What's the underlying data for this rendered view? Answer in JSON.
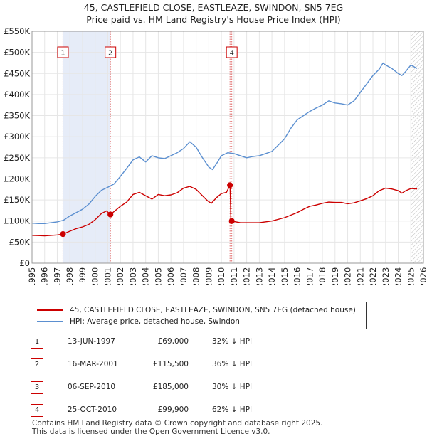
{
  "header": {
    "title": "45, CASTLEFIELD CLOSE, EASTLEAZE, SWINDON, SN5 7EG",
    "subtitle": "Price paid vs. HM Land Registry's House Price Index (HPI)"
  },
  "colors": {
    "price": "#cc0000",
    "hpi": "#5b8fd0",
    "shade": "#e6ecf8",
    "grid": "#e6e6e6"
  },
  "chart_data": {
    "type": "line",
    "title": "Price paid vs. HM Land Registry's House Price Index (HPI)",
    "xlim": [
      1995,
      2026
    ],
    "ylim": [
      0,
      550000
    ],
    "y_ticks": [
      {
        "value": 0,
        "label": "£0"
      },
      {
        "value": 50000,
        "label": "£50K"
      },
      {
        "value": 100000,
        "label": "£100K"
      },
      {
        "value": 150000,
        "label": "£150K"
      },
      {
        "value": 200000,
        "label": "£200K"
      },
      {
        "value": 250000,
        "label": "£250K"
      },
      {
        "value": 300000,
        "label": "£300K"
      },
      {
        "value": 350000,
        "label": "£350K"
      },
      {
        "value": 400000,
        "label": "£400K"
      },
      {
        "value": 450000,
        "label": "£450K"
      },
      {
        "value": 500000,
        "label": "£500K"
      },
      {
        "value": 550000,
        "label": "£550K"
      }
    ],
    "x_ticks": [
      "1995",
      "1996",
      "1997",
      "1998",
      "1999",
      "2000",
      "2001",
      "2002",
      "2003",
      "2004",
      "2005",
      "2006",
      "2007",
      "2008",
      "2009",
      "2010",
      "2011",
      "2012",
      "2013",
      "2014",
      "2015",
      "2016",
      "2017",
      "2018",
      "2019",
      "2020",
      "2021",
      "2022",
      "2023",
      "2024",
      "2025",
      "2026"
    ],
    "shaded_range": [
      1997.45,
      2001.21
    ],
    "hatched_from": 2025.0,
    "series": [
      {
        "name": "45, CASTLEFIELD CLOSE, EASTLEAZE, SWINDON, SN5 7EG (detached house)",
        "points": [
          [
            1995.0,
            66000
          ],
          [
            1995.5,
            65500
          ],
          [
            1996.0,
            65000
          ],
          [
            1996.5,
            66000
          ],
          [
            1997.0,
            67000
          ],
          [
            1997.45,
            69000
          ],
          [
            1998.0,
            76000
          ],
          [
            1998.5,
            82000
          ],
          [
            1999.0,
            86000
          ],
          [
            1999.5,
            92000
          ],
          [
            2000.0,
            103000
          ],
          [
            2000.5,
            118000
          ],
          [
            2000.9,
            124000
          ],
          [
            2001.21,
            115500
          ],
          [
            2001.6,
            125000
          ],
          [
            2002.0,
            135000
          ],
          [
            2002.5,
            145000
          ],
          [
            2003.0,
            163000
          ],
          [
            2003.5,
            168000
          ],
          [
            2004.0,
            160000
          ],
          [
            2004.5,
            152000
          ],
          [
            2005.0,
            163000
          ],
          [
            2005.5,
            160000
          ],
          [
            2006.0,
            162000
          ],
          [
            2006.5,
            167000
          ],
          [
            2007.0,
            178000
          ],
          [
            2007.5,
            182000
          ],
          [
            2008.0,
            175000
          ],
          [
            2008.5,
            160000
          ],
          [
            2008.9,
            148000
          ],
          [
            2009.2,
            142000
          ],
          [
            2009.6,
            155000
          ],
          [
            2010.0,
            165000
          ],
          [
            2010.4,
            168000
          ],
          [
            2010.68,
            185000
          ],
          [
            2010.7,
            170000
          ],
          [
            2010.75,
            105000
          ],
          [
            2010.82,
            99900
          ],
          [
            2011.5,
            96000
          ],
          [
            2012.0,
            96000
          ],
          [
            2013.0,
            96000
          ],
          [
            2014.0,
            100000
          ],
          [
            2015.0,
            108000
          ],
          [
            2016.0,
            120000
          ],
          [
            2016.5,
            128000
          ],
          [
            2017.0,
            135000
          ],
          [
            2017.5,
            138000
          ],
          [
            2018.0,
            142000
          ],
          [
            2018.5,
            145000
          ],
          [
            2019.0,
            144000
          ],
          [
            2019.5,
            144000
          ],
          [
            2020.0,
            141000
          ],
          [
            2020.5,
            143000
          ],
          [
            2021.0,
            148000
          ],
          [
            2021.5,
            153000
          ],
          [
            2022.0,
            160000
          ],
          [
            2022.5,
            172000
          ],
          [
            2023.0,
            178000
          ],
          [
            2023.5,
            176000
          ],
          [
            2024.0,
            172000
          ],
          [
            2024.3,
            166000
          ],
          [
            2024.6,
            172000
          ],
          [
            2025.0,
            177000
          ],
          [
            2025.5,
            176000
          ]
        ]
      },
      {
        "name": "HPI: Average price, detached house, Swindon",
        "points": [
          [
            1995.0,
            95000
          ],
          [
            1995.5,
            94000
          ],
          [
            1996.0,
            94000
          ],
          [
            1996.5,
            96000
          ],
          [
            1997.0,
            98000
          ],
          [
            1997.5,
            102000
          ],
          [
            1998.0,
            112000
          ],
          [
            1998.5,
            120000
          ],
          [
            1999.0,
            128000
          ],
          [
            1999.5,
            140000
          ],
          [
            2000.0,
            158000
          ],
          [
            2000.5,
            173000
          ],
          [
            2001.0,
            180000
          ],
          [
            2001.5,
            188000
          ],
          [
            2002.0,
            206000
          ],
          [
            2002.5,
            225000
          ],
          [
            2003.0,
            245000
          ],
          [
            2003.5,
            252000
          ],
          [
            2004.0,
            240000
          ],
          [
            2004.5,
            255000
          ],
          [
            2005.0,
            250000
          ],
          [
            2005.5,
            248000
          ],
          [
            2006.0,
            255000
          ],
          [
            2006.5,
            262000
          ],
          [
            2007.0,
            272000
          ],
          [
            2007.5,
            288000
          ],
          [
            2008.0,
            275000
          ],
          [
            2008.5,
            250000
          ],
          [
            2009.0,
            228000
          ],
          [
            2009.3,
            222000
          ],
          [
            2009.7,
            240000
          ],
          [
            2010.0,
            255000
          ],
          [
            2010.5,
            262000
          ],
          [
            2011.0,
            260000
          ],
          [
            2011.5,
            255000
          ],
          [
            2012.0,
            250000
          ],
          [
            2012.5,
            253000
          ],
          [
            2013.0,
            255000
          ],
          [
            2013.5,
            260000
          ],
          [
            2014.0,
            265000
          ],
          [
            2014.5,
            280000
          ],
          [
            2015.0,
            295000
          ],
          [
            2015.5,
            320000
          ],
          [
            2016.0,
            340000
          ],
          [
            2016.5,
            350000
          ],
          [
            2017.0,
            360000
          ],
          [
            2017.5,
            368000
          ],
          [
            2018.0,
            375000
          ],
          [
            2018.5,
            385000
          ],
          [
            2019.0,
            380000
          ],
          [
            2019.5,
            378000
          ],
          [
            2020.0,
            375000
          ],
          [
            2020.5,
            385000
          ],
          [
            2021.0,
            405000
          ],
          [
            2021.5,
            425000
          ],
          [
            2022.0,
            445000
          ],
          [
            2022.5,
            460000
          ],
          [
            2022.8,
            475000
          ],
          [
            2023.0,
            470000
          ],
          [
            2023.5,
            462000
          ],
          [
            2024.0,
            450000
          ],
          [
            2024.3,
            445000
          ],
          [
            2024.6,
            455000
          ],
          [
            2025.0,
            470000
          ],
          [
            2025.5,
            462000
          ]
        ]
      }
    ],
    "markers": [
      {
        "label": "1",
        "x": 1997.45,
        "y": 69000
      },
      {
        "label": "2",
        "x": 2001.21,
        "y": 115500
      },
      {
        "label": "3",
        "x": 2010.68,
        "y": 185000
      },
      {
        "label": "4",
        "x": 2010.82,
        "y": 99900
      }
    ],
    "marker_boxes": [
      {
        "label": "1",
        "x": 1997.45
      },
      {
        "label": "2",
        "x": 2001.21
      },
      {
        "label": "4",
        "x": 2010.82
      }
    ]
  },
  "legend": {
    "price_label": "45, CASTLEFIELD CLOSE, EASTLEAZE, SWINDON, SN5 7EG (detached house)",
    "hpi_label": "HPI: Average price, detached house, Swindon"
  },
  "sales": [
    {
      "num": "1",
      "date": "13-JUN-1997",
      "price": "£69,000",
      "hpi": "32% ↓ HPI"
    },
    {
      "num": "2",
      "date": "16-MAR-2001",
      "price": "£115,500",
      "hpi": "36% ↓ HPI"
    },
    {
      "num": "3",
      "date": "06-SEP-2010",
      "price": "£185,000",
      "hpi": "30% ↓ HPI"
    },
    {
      "num": "4",
      "date": "25-OCT-2010",
      "price": "£99,900",
      "hpi": "62% ↓ HPI"
    }
  ],
  "footer": {
    "line1": "Contains HM Land Registry data © Crown copyright and database right 2025.",
    "line2": "This data is licensed under the Open Government Licence v3.0."
  }
}
